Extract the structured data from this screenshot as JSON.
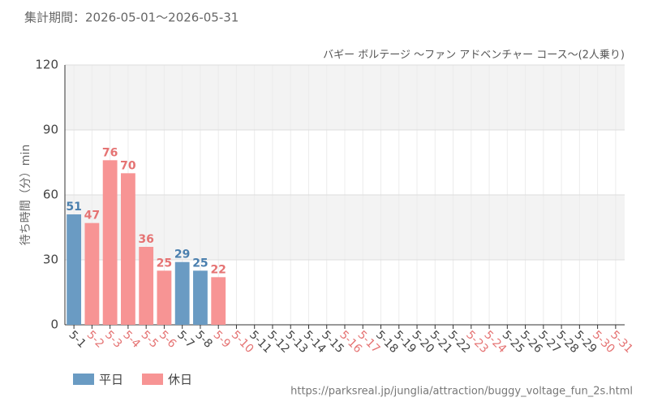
{
  "chart_data": {
    "type": "bar",
    "header": "集計期間：2026-05-01～2026-05-31",
    "title": "バギー ボルテージ ～ファン アドベンチャー コース～(2人乗り)",
    "y_label": "待ち時間（分）min",
    "footer": "https://parksreal.jp/junglia/attraction/buggy_voltage_fun_2s.html",
    "categories": [
      "5-1",
      "5-2",
      "5-3",
      "5-4",
      "5-5",
      "5-6",
      "5-7",
      "5-8",
      "5-9",
      "5-10",
      "5-11",
      "5-12",
      "5-13",
      "5-14",
      "5-15",
      "5-16",
      "5-17",
      "5-18",
      "5-19",
      "5-20",
      "5-21",
      "5-22",
      "5-23",
      "5-24",
      "5-25",
      "5-26",
      "5-27",
      "5-28",
      "5-29",
      "5-30",
      "5-31"
    ],
    "category_label_colors": [
      "#444",
      "#e57373",
      "#e57373",
      "#e57373",
      "#e57373",
      "#e57373",
      "#444",
      "#444",
      "#e57373",
      "#e57373",
      "#444",
      "#444",
      "#444",
      "#444",
      "#444",
      "#e57373",
      "#e57373",
      "#444",
      "#444",
      "#444",
      "#444",
      "#444",
      "#e57373",
      "#e57373",
      "#444",
      "#444",
      "#444",
      "#444",
      "#444",
      "#e57373",
      "#e57373"
    ],
    "series": [
      {
        "name": "平日",
        "color": "#6a9bc3",
        "label_color": "#4a7fae",
        "values": [
          51,
          null,
          null,
          null,
          null,
          null,
          29,
          25,
          null,
          null,
          null,
          null,
          null,
          null,
          null,
          null,
          null,
          null,
          null,
          null,
          null,
          null,
          null,
          null,
          null,
          null,
          null,
          null,
          null,
          null,
          null
        ]
      },
      {
        "name": "休日",
        "color": "#f79494",
        "label_color": "#e57373",
        "values": [
          null,
          47,
          76,
          70,
          36,
          25,
          null,
          null,
          22,
          null,
          null,
          null,
          null,
          null,
          null,
          null,
          null,
          null,
          null,
          null,
          null,
          null,
          null,
          null,
          null,
          null,
          null,
          null,
          null,
          null,
          null
        ]
      }
    ],
    "ylim": [
      0,
      120
    ],
    "yticks": [
      0,
      30,
      60,
      90,
      120
    ],
    "grid": true,
    "legend": "bottom-left"
  }
}
